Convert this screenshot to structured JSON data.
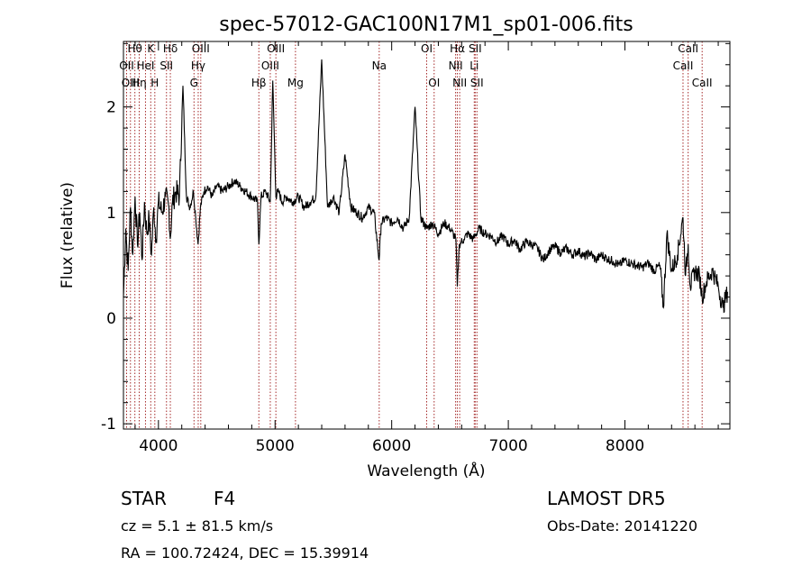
{
  "chart_data": {
    "type": "line",
    "title": "spec-57012-GAC100N17M1_sp01-006.fits",
    "xlabel": "Wavelength (Å)",
    "ylabel": "Flux (relative)",
    "xlim": [
      3700,
      8900
    ],
    "ylim": [
      -1.05,
      2.62
    ],
    "xticks": [
      4000,
      5000,
      6000,
      7000,
      8000
    ],
    "yticks": [
      -1,
      0,
      1,
      2
    ],
    "grid": false,
    "series": [
      {
        "x": [
          3700,
          3720,
          3740,
          3760,
          3780,
          3800,
          3820,
          3840,
          3860,
          3880,
          3900,
          3920,
          3940,
          3960,
          3980,
          4000,
          4030,
          4060,
          4090,
          4101,
          4120,
          4150,
          4180,
          4210,
          4240,
          4270,
          4300,
          4320,
          4340,
          4360,
          4390,
          4420,
          4460,
          4500,
          4550,
          4600,
          4650,
          4700,
          4750,
          4800,
          4850,
          4861,
          4880,
          4920,
          4959,
          4980,
          5007,
          5030,
          5060,
          5100,
          5150,
          5200,
          5250,
          5300,
          5350,
          5400,
          5450,
          5500,
          5550,
          5600,
          5650,
          5700,
          5750,
          5800,
          5850,
          5892,
          5910,
          5950,
          6000,
          6050,
          6100,
          6150,
          6200,
          6250,
          6300,
          6350,
          6400,
          6450,
          6500,
          6550,
          6563,
          6580,
          6620,
          6650,
          6700,
          6750,
          6800,
          6850,
          6900,
          6950,
          7000,
          7050,
          7100,
          7150,
          7200,
          7250,
          7300,
          7350,
          7400,
          7450,
          7500,
          7550,
          7600,
          7650,
          7700,
          7750,
          7800,
          7850,
          7900,
          7950,
          8000,
          8050,
          8100,
          8150,
          8200,
          8250,
          8300,
          8330,
          8360,
          8400,
          8450,
          8498,
          8520,
          8542,
          8560,
          8600,
          8640,
          8662,
          8700,
          8750,
          8800,
          8840,
          8880
        ],
        "y": [
          0.2,
          0.85,
          0.45,
          1.05,
          0.6,
          1.15,
          0.7,
          1.0,
          0.55,
          1.1,
          0.8,
          0.95,
          0.6,
          1.05,
          0.75,
          1.1,
          1.0,
          1.15,
          1.05,
          0.75,
          1.1,
          1.2,
          1.15,
          2.2,
          1.15,
          1.05,
          1.2,
          0.95,
          0.7,
          1.05,
          1.2,
          1.25,
          1.15,
          1.25,
          1.2,
          1.25,
          1.3,
          1.25,
          1.2,
          1.15,
          1.1,
          0.7,
          1.15,
          1.2,
          1.1,
          2.25,
          1.15,
          1.2,
          1.1,
          1.15,
          1.1,
          1.15,
          1.05,
          1.1,
          1.15,
          2.45,
          1.05,
          1.15,
          1.0,
          1.55,
          1.05,
          1.0,
          0.95,
          1.05,
          1.0,
          0.55,
          0.9,
          0.95,
          0.9,
          0.95,
          0.85,
          0.95,
          2.0,
          0.95,
          0.85,
          0.9,
          0.8,
          0.9,
          0.85,
          0.75,
          0.3,
          0.7,
          0.75,
          0.8,
          0.75,
          0.85,
          0.8,
          0.78,
          0.72,
          0.78,
          0.7,
          0.74,
          0.65,
          0.72,
          0.7,
          0.66,
          0.55,
          0.64,
          0.68,
          0.62,
          0.66,
          0.6,
          0.64,
          0.58,
          0.62,
          0.55,
          0.6,
          0.56,
          0.54,
          0.5,
          0.55,
          0.52,
          0.5,
          0.48,
          0.52,
          0.45,
          0.5,
          0.1,
          0.8,
          0.45,
          0.6,
          0.95,
          0.4,
          0.7,
          0.3,
          0.45,
          0.4,
          0.2,
          0.35,
          0.45,
          0.3,
          0.1,
          0.25
        ]
      }
    ],
    "lines": [
      {
        "label": "Hθ",
        "x": 3798
      },
      {
        "label": "OII",
        "x": 3727
      },
      {
        "label": "OIII",
        "x": 3760
      },
      {
        "label": "Hη",
        "x": 3835
      },
      {
        "label": "HeI",
        "x": 3889
      },
      {
        "label": "K",
        "x": 3934
      },
      {
        "label": "H",
        "x": 3969
      },
      {
        "label": "SII",
        "x": 4069
      },
      {
        "label": "Hδ",
        "x": 4102
      },
      {
        "label": "OIII",
        "x": 4363
      },
      {
        "label": "Hγ",
        "x": 4341
      },
      {
        "label": "G",
        "x": 4305
      },
      {
        "label": "Hβ",
        "x": 4861
      },
      {
        "label": "OIII",
        "x": 5007
      },
      {
        "label": "OIII",
        "x": 4959
      },
      {
        "label": "Mg",
        "x": 5175
      },
      {
        "label": "Na",
        "x": 5893
      },
      {
        "label": "OI",
        "x": 6300
      },
      {
        "label": "OI",
        "x": 6364
      },
      {
        "label": "Hα",
        "x": 6563
      },
      {
        "label": "NII",
        "x": 6548
      },
      {
        "label": "NII",
        "x": 6583
      },
      {
        "label": "SII",
        "x": 6716
      },
      {
        "label": "Li",
        "x": 6708
      },
      {
        "label": "SII",
        "x": 6731
      },
      {
        "label": "CaII",
        "x": 8542
      },
      {
        "label": "CaII",
        "x": 8498
      },
      {
        "label": "CaII",
        "x": 8662
      }
    ]
  },
  "info": {
    "object_class": "STAR",
    "subclass": "F4",
    "survey": "LAMOST DR5",
    "cz": "cz = 5.1 ± 81.5 km/s",
    "obs_date": "Obs-Date: 20141220",
    "coords": "RA = 100.72424, DEC =  15.39914"
  },
  "colors": {
    "spectrum": "#000000",
    "line_markers": "#a52a2a"
  }
}
